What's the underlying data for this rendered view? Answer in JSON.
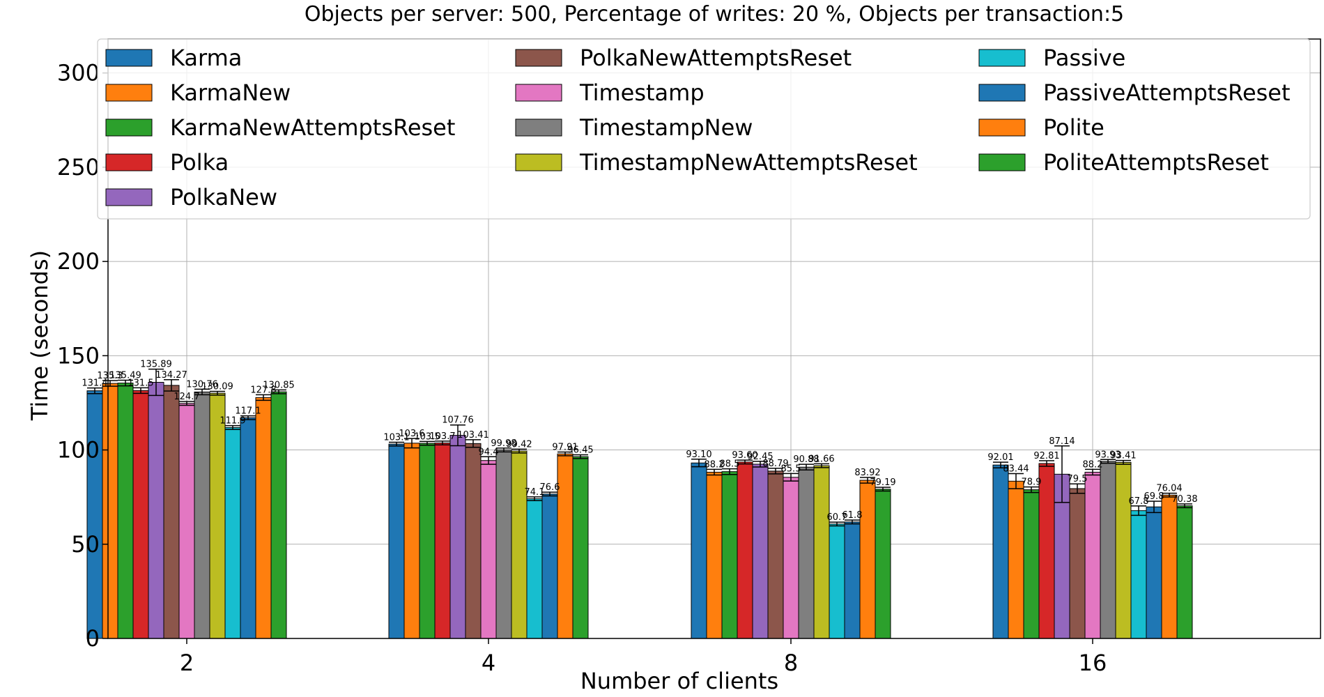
{
  "chart_data": {
    "type": "bar",
    "title": "Objects per server: 500, Percentage of writes: 20 %, Objects per transaction:5",
    "xlabel": "Number of clients",
    "ylabel": "Time (seconds)",
    "ylim": [
      0,
      318
    ],
    "yticks": [
      0,
      50,
      100,
      150,
      200,
      250,
      300
    ],
    "categories": [
      "2",
      "4",
      "8",
      "16"
    ],
    "grid": true,
    "legend_position": "top",
    "series": [
      {
        "name": "Karma",
        "color": "#1f77b4",
        "values": [
          131.4,
          103.1,
          93.1,
          92.01
        ],
        "errors": [
          1.5,
          1.0,
          2.0,
          1.5
        ],
        "labels": [
          "131.4",
          "103.1",
          "93.10",
          "92.01"
        ]
      },
      {
        "name": "KarmaNew",
        "color": "#ff7f0e",
        "values": [
          135.3,
          103.6,
          88.2,
          83.44
        ],
        "errors": [
          1.5,
          2.5,
          1.5,
          4.0
        ],
        "labels": [
          "135.3",
          "103.6",
          "88.2",
          "83.44"
        ]
      },
      {
        "name": "KarmaNewAttemptsReset",
        "color": "#2ca02c",
        "values": [
          135.49,
          103.5,
          88.5,
          78.9
        ],
        "errors": [
          1.5,
          1.0,
          1.5,
          1.5
        ],
        "labels": [
          "135.49",
          "103.5",
          "88.5",
          "78.9"
        ]
      },
      {
        "name": "Polka",
        "color": "#d62728",
        "values": [
          131.5,
          103.7,
          93.6,
          92.81
        ],
        "errors": [
          1.5,
          1.0,
          1.0,
          1.5
        ],
        "labels": [
          "131.5",
          "103.7",
          "93.60",
          "92.81"
        ]
      },
      {
        "name": "PolkaNew",
        "color": "#9467bd",
        "values": [
          135.89,
          107.76,
          92.45,
          87.14
        ],
        "errors": [
          7.0,
          5.5,
          1.5,
          15.0
        ],
        "labels": [
          "135.89",
          "107.76",
          "92.45",
          "87.14"
        ]
      },
      {
        "name": "PolkaNewAttemptsReset",
        "color": "#8c564b",
        "values": [
          134.27,
          103.41,
          88.79,
          79.5
        ],
        "errors": [
          3.0,
          2.0,
          1.5,
          2.5
        ],
        "labels": [
          "134.27",
          "103.41",
          "88.79",
          "79.5"
        ]
      },
      {
        "name": "Timestamp",
        "color": "#e377c2",
        "values": [
          124.7,
          94.4,
          85.5,
          88.2
        ],
        "errors": [
          1.0,
          2.0,
          2.0,
          1.5
        ],
        "labels": [
          "124.7",
          "94.4",
          "85.5",
          "88.2"
        ]
      },
      {
        "name": "TimestampNew",
        "color": "#7f7f7f",
        "values": [
          130.76,
          99.98,
          90.88,
          93.93
        ],
        "errors": [
          1.5,
          1.0,
          1.5,
          1.0
        ],
        "labels": [
          "130.76",
          "99.98",
          "90.88",
          "93.93"
        ]
      },
      {
        "name": "TimestampNewAttemptsReset",
        "color": "#bcbd22",
        "values": [
          130.09,
          99.42,
          91.66,
          93.41
        ],
        "errors": [
          1.0,
          1.0,
          1.0,
          1.0
        ],
        "labels": [
          "130.09",
          "99.42",
          "91.66",
          "93.41"
        ]
      },
      {
        "name": "Passive",
        "color": "#17becf",
        "values": [
          111.9,
          74.1,
          60.7,
          67.8
        ],
        "errors": [
          1.0,
          1.0,
          1.0,
          2.5
        ],
        "labels": [
          "111.9",
          "74.1",
          "60.7",
          "67.8"
        ]
      },
      {
        "name": "PassiveAttemptsReset",
        "color": "#1f77b4",
        "values": [
          117.1,
          76.6,
          61.8,
          69.8
        ],
        "errors": [
          1.0,
          1.0,
          1.0,
          3.0
        ],
        "labels": [
          "117.1",
          "76.6",
          "61.8",
          "69.8"
        ]
      },
      {
        "name": "Polite",
        "color": "#ff7f0e",
        "values": [
          127.8,
          97.91,
          83.92,
          76.04
        ],
        "errors": [
          1.5,
          1.0,
          1.5,
          1.0
        ],
        "labels": [
          "127.8",
          "97.91",
          "83.92",
          "76.04"
        ]
      },
      {
        "name": "PoliteAttemptsReset",
        "color": "#2ca02c",
        "values": [
          130.85,
          96.45,
          79.19,
          70.38
        ],
        "errors": [
          1.0,
          1.0,
          1.0,
          1.0
        ],
        "labels": [
          "130.85",
          "96.45",
          "79.19",
          "70.38"
        ]
      }
    ]
  }
}
